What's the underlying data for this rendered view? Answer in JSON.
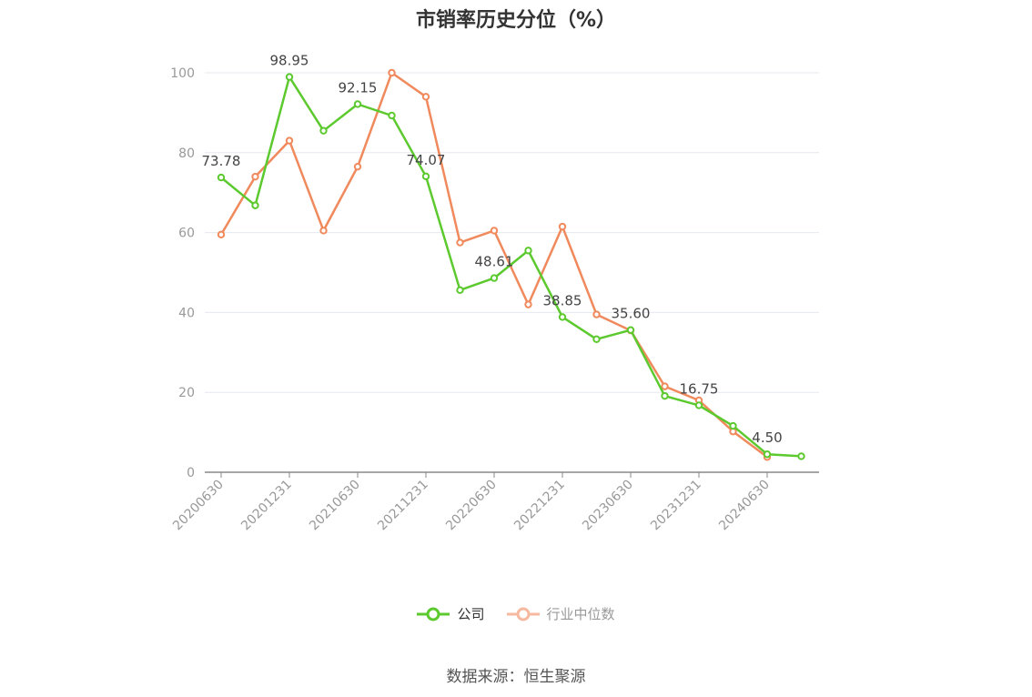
{
  "chart_data": {
    "type": "line",
    "title": "市销率历史分位（%）",
    "x": [
      "20200630",
      "20200930",
      "20201231",
      "20210331",
      "20210630",
      "20210930",
      "20211231",
      "20220331",
      "20220630",
      "20220930",
      "20221231",
      "20230331",
      "20230630",
      "20230930",
      "20231231",
      "20240331",
      "20240630",
      "20240930"
    ],
    "x_tick_labels": [
      "20200630",
      "20201231",
      "20210630",
      "20211231",
      "20220630",
      "20221231",
      "20230630",
      "20231231",
      "20240630"
    ],
    "ylim": [
      0,
      100
    ],
    "y_ticks": [
      0,
      20,
      40,
      60,
      80,
      100
    ],
    "grid": true,
    "legend_position": "bottom",
    "series": [
      {
        "name": "公司",
        "color": "#5cc92e",
        "values": [
          73.78,
          66.8,
          98.95,
          85.5,
          92.15,
          89.3,
          74.07,
          45.6,
          48.61,
          55.5,
          38.85,
          33.3,
          35.6,
          19.1,
          16.75,
          11.6,
          4.5,
          4.0
        ],
        "data_labels": [
          {
            "index": 0,
            "text": "73.78"
          },
          {
            "index": 2,
            "text": "98.95"
          },
          {
            "index": 4,
            "text": "92.15"
          },
          {
            "index": 6,
            "text": "74.07"
          },
          {
            "index": 8,
            "text": "48.61"
          },
          {
            "index": 10,
            "text": "38.85"
          },
          {
            "index": 12,
            "text": "35.60"
          },
          {
            "index": 14,
            "text": "16.75"
          },
          {
            "index": 16,
            "text": "4.50"
          }
        ]
      },
      {
        "name": "行业中位数",
        "color": "#f0895c",
        "legend_color": "#f6b9a0",
        "values": [
          59.5,
          74.0,
          83.0,
          60.5,
          76.5,
          100.0,
          94.0,
          57.5,
          60.5,
          42.0,
          61.5,
          39.5,
          35.5,
          21.5,
          18.0,
          10.2,
          3.8,
          null
        ]
      }
    ]
  },
  "source_text": "数据来源：恒生聚源"
}
